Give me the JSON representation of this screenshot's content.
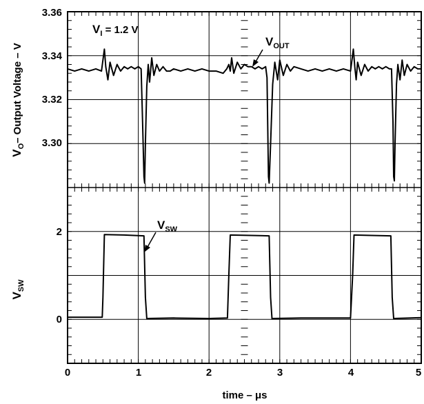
{
  "chart_data": {
    "type": "line",
    "xlabel": "time – μs",
    "x_ticks": [
      "0",
      "1",
      "2",
      "3",
      "4",
      "5"
    ],
    "xlim": [
      0,
      5
    ],
    "grid": true,
    "panels": [
      {
        "id": "top",
        "ylabel_main": "V",
        "ylabel_sub": "O",
        "ylabel_rest": "– Output Voltage – V",
        "ylim": [
          3.28,
          3.36
        ],
        "y_ticks": [
          "3.36",
          "3.34",
          "3.32",
          "3.30"
        ],
        "y_tick_values": [
          3.36,
          3.34,
          3.32,
          3.3
        ],
        "annotations": [
          {
            "main": "V",
            "sub": "I",
            "rest": " = 1.2 V"
          },
          {
            "main": "V",
            "sub": "OUT",
            "rest": ""
          }
        ],
        "series": [
          {
            "x": [
              0,
              0.1,
              0.2,
              0.3,
              0.4,
              0.48,
              0.5,
              0.52,
              0.54,
              0.57,
              0.6,
              0.65,
              0.7,
              0.75,
              0.8,
              0.85,
              0.9,
              0.95,
              1.0,
              1.04,
              1.06,
              1.08,
              1.09,
              1.1,
              1.12,
              1.14,
              1.16,
              1.19,
              1.22,
              1.26,
              1.3,
              1.35,
              1.4,
              1.45,
              1.5,
              1.6,
              1.7,
              1.8,
              1.9,
              2.0,
              2.1,
              2.2,
              2.25,
              2.28,
              2.3,
              2.32,
              2.35,
              2.4,
              2.45,
              2.5,
              2.55,
              2.6,
              2.65,
              2.7,
              2.75,
              2.8,
              2.82,
              2.84,
              2.85,
              2.87,
              2.9,
              2.93,
              2.97,
              3.0,
              3.05,
              3.1,
              3.15,
              3.2,
              3.3,
              3.4,
              3.5,
              3.6,
              3.7,
              3.8,
              3.9,
              4.0,
              4.02,
              4.04,
              4.06,
              4.08,
              4.1,
              4.15,
              4.2,
              4.25,
              4.3,
              4.35,
              4.4,
              4.45,
              4.5,
              4.55,
              4.58,
              4.6,
              4.61,
              4.62,
              4.63,
              4.65,
              4.67,
              4.7,
              4.73,
              4.76,
              4.8,
              4.85,
              4.9,
              4.95,
              5.0
            ],
            "y": [
              3.334,
              3.333,
              3.334,
              3.333,
              3.334,
              3.333,
              3.338,
              3.343,
              3.335,
              3.329,
              3.337,
              3.331,
              3.336,
              3.333,
              3.335,
              3.334,
              3.335,
              3.334,
              3.335,
              3.334,
              3.31,
              3.285,
              3.282,
              3.3,
              3.326,
              3.336,
              3.328,
              3.339,
              3.331,
              3.336,
              3.333,
              3.335,
              3.333,
              3.333,
              3.334,
              3.333,
              3.334,
              3.333,
              3.334,
              3.333,
              3.333,
              3.332,
              3.334,
              3.336,
              3.333,
              3.339,
              3.332,
              3.337,
              3.334,
              3.336,
              3.335,
              3.335,
              3.334,
              3.335,
              3.334,
              3.335,
              3.33,
              3.285,
              3.282,
              3.3,
              3.327,
              3.337,
              3.329,
              3.338,
              3.331,
              3.336,
              3.333,
              3.335,
              3.334,
              3.333,
              3.334,
              3.333,
              3.334,
              3.333,
              3.334,
              3.333,
              3.338,
              3.343,
              3.335,
              3.329,
              3.337,
              3.331,
              3.336,
              3.333,
              3.335,
              3.334,
              3.335,
              3.334,
              3.335,
              3.334,
              3.334,
              3.31,
              3.285,
              3.283,
              3.3,
              3.327,
              3.336,
              3.329,
              3.338,
              3.331,
              3.336,
              3.333,
              3.335,
              3.334,
              3.334
            ]
          }
        ]
      },
      {
        "id": "bottom",
        "ylabel_main": "V",
        "ylabel_sub": "SW",
        "ylabel_rest": "",
        "ylim": [
          -1,
          3
        ],
        "y_ticks": [
          "2",
          "0"
        ],
        "y_tick_values": [
          2,
          0
        ],
        "annotations": [
          {
            "main": "V",
            "sub": "SW",
            "rest": ""
          }
        ],
        "series": [
          {
            "x": [
              0,
              0.49,
              0.5,
              0.52,
              0.8,
              1.08,
              1.1,
              1.12,
              1.5,
              2.0,
              2.26,
              2.28,
              2.3,
              2.6,
              2.85,
              2.87,
              2.89,
              3.3,
              3.7,
              4.0,
              4.03,
              4.05,
              4.3,
              4.57,
              4.59,
              4.61,
              5.0
            ],
            "y": [
              0.05,
              0.05,
              0.5,
              1.93,
              1.92,
              1.9,
              0.5,
              0.02,
              0.03,
              0.02,
              0.03,
              1.0,
              1.92,
              1.91,
              1.9,
              0.5,
              0.02,
              0.03,
              0.03,
              0.03,
              1.0,
              1.92,
              1.91,
              1.9,
              0.5,
              0.02,
              0.04
            ]
          }
        ]
      }
    ]
  }
}
